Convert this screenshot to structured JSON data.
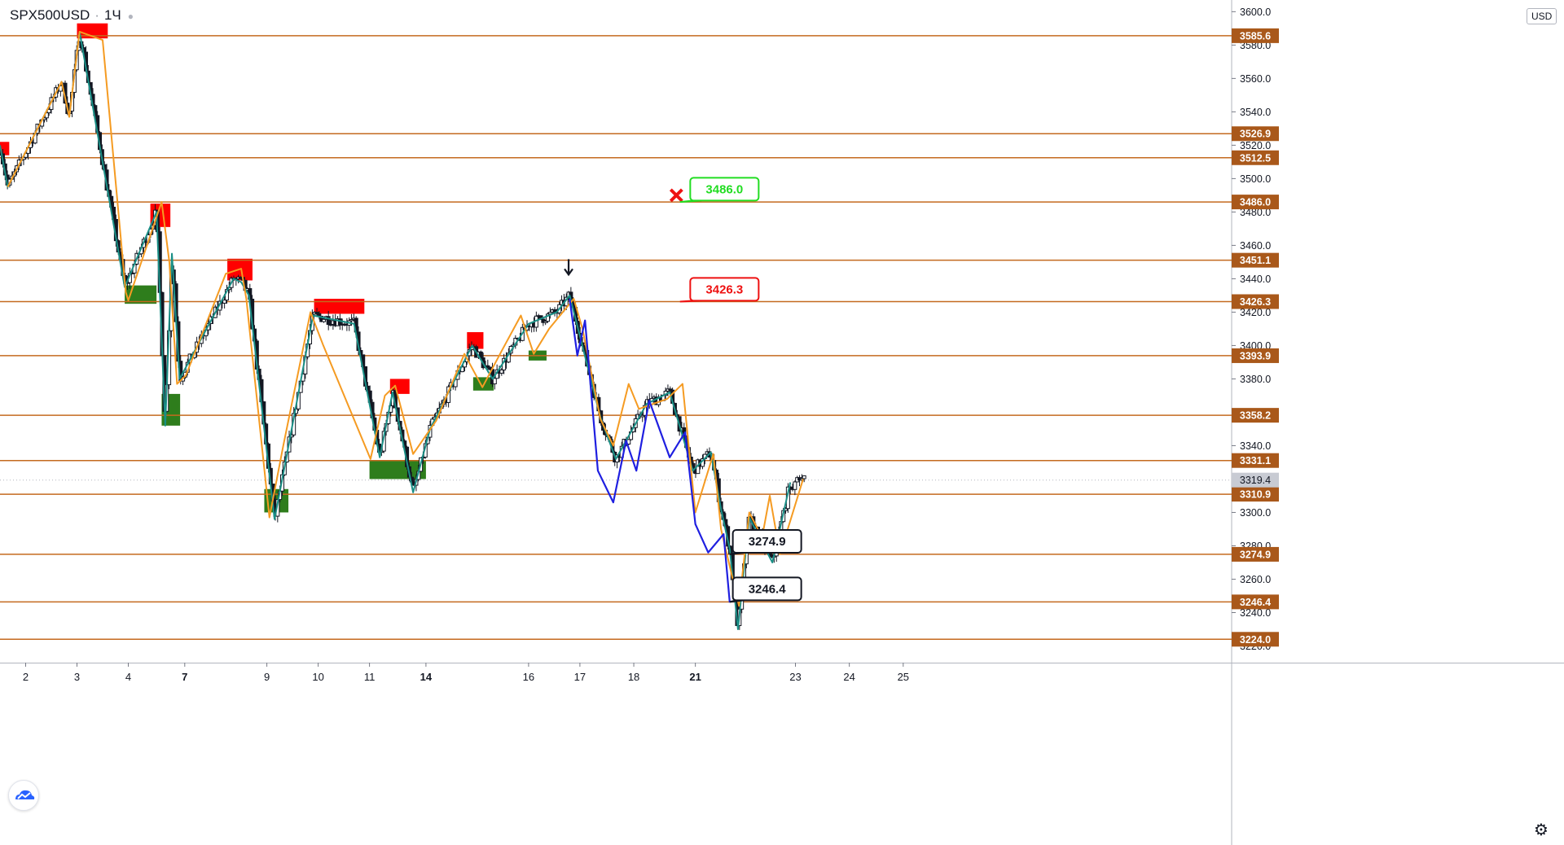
{
  "header": {
    "symbol": "SPX500USD",
    "interval": "1Ч"
  },
  "currency": "USD",
  "colors": {
    "level_line": "#c46a1f",
    "level_label_bg": "#a9581a",
    "supply_zone": "#ff0000",
    "demand_zone": "#2e7d1c",
    "zigzag_orange": "#f59b22",
    "zigzag_teal": "#1a8f86",
    "projection_blue": "#1f1fe0",
    "candle_up": "#ffffff",
    "candle_down": "#131722",
    "target_green": "#22dd22",
    "target_red": "#ee1111"
  },
  "chart_data": {
    "type": "candlestick",
    "y_range": [
      3210,
      3607
    ],
    "y_ticks": [
      3220,
      3240,
      3260,
      3280,
      3300,
      3320,
      3340,
      3360,
      3380,
      3400,
      3420,
      3440,
      3460,
      3480,
      3500,
      3520,
      3540,
      3560,
      3580,
      3600
    ],
    "x_range": [
      1.5,
      25.5
    ],
    "x_ticks": [
      {
        "x": 2,
        "label": "2",
        "bold": false
      },
      {
        "x": 3,
        "label": "3",
        "bold": false
      },
      {
        "x": 4,
        "label": "4",
        "bold": false
      },
      {
        "x": 5.1,
        "label": "7",
        "bold": true
      },
      {
        "x": 6.7,
        "label": "9",
        "bold": false
      },
      {
        "x": 7.7,
        "label": "10",
        "bold": false
      },
      {
        "x": 8.7,
        "label": "11",
        "bold": false
      },
      {
        "x": 9.8,
        "label": "14",
        "bold": true
      },
      {
        "x": 11.8,
        "label": "16",
        "bold": false
      },
      {
        "x": 12.8,
        "label": "17",
        "bold": false
      },
      {
        "x": 13.85,
        "label": "18",
        "bold": false
      },
      {
        "x": 15.05,
        "label": "21",
        "bold": true
      },
      {
        "x": 17.0,
        "label": "23",
        "bold": false
      },
      {
        "x": 18.05,
        "label": "24",
        "bold": false
      },
      {
        "x": 19.1,
        "label": "25",
        "bold": false
      }
    ],
    "levels": [
      {
        "value": 3585.6,
        "label": "3585.6"
      },
      {
        "value": 3526.9,
        "label": "3526.9"
      },
      {
        "value": 3512.5,
        "label": "3512.5"
      },
      {
        "value": 3486.0,
        "label": "3486.0"
      },
      {
        "value": 3451.1,
        "label": "3451.1"
      },
      {
        "value": 3426.3,
        "label": "3426.3"
      },
      {
        "value": 3393.9,
        "label": "3393.9"
      },
      {
        "value": 3358.2,
        "label": "3358.2"
      },
      {
        "value": 3331.1,
        "label": "3331.1"
      },
      {
        "value": 3310.9,
        "label": "3310.9"
      },
      {
        "value": 3274.9,
        "label": "3274.9"
      },
      {
        "value": 3246.4,
        "label": "3246.4"
      },
      {
        "value": 3224.0,
        "label": "3224.0"
      }
    ],
    "last_price": {
      "value": 3319.4,
      "label": "3319.4"
    },
    "supply_zones": [
      {
        "x1": 1.5,
        "x2": 1.68,
        "y1": 3514,
        "y2": 3522
      },
      {
        "x1": 3.0,
        "x2": 3.6,
        "y1": 3584,
        "y2": 3593
      },
      {
        "x1": 4.43,
        "x2": 4.82,
        "y1": 3471,
        "y2": 3485
      },
      {
        "x1": 5.93,
        "x2": 6.42,
        "y1": 3439,
        "y2": 3452
      },
      {
        "x1": 7.62,
        "x2": 8.6,
        "y1": 3419,
        "y2": 3428
      },
      {
        "x1": 9.1,
        "x2": 9.48,
        "y1": 3371,
        "y2": 3380
      },
      {
        "x1": 10.6,
        "x2": 10.92,
        "y1": 3398,
        "y2": 3408
      }
    ],
    "demand_zones": [
      {
        "x1": 3.93,
        "x2": 4.55,
        "y1": 3425,
        "y2": 3436
      },
      {
        "x1": 4.65,
        "x2": 5.01,
        "y1": 3352,
        "y2": 3371
      },
      {
        "x1": 6.65,
        "x2": 7.12,
        "y1": 3300,
        "y2": 3314
      },
      {
        "x1": 8.7,
        "x2": 9.8,
        "y1": 3320,
        "y2": 3331
      },
      {
        "x1": 10.72,
        "x2": 11.12,
        "y1": 3373,
        "y2": 3381
      },
      {
        "x1": 11.8,
        "x2": 12.15,
        "y1": 3391,
        "y2": 3397
      }
    ],
    "zigzag_orange": [
      [
        1.65,
        3495
      ],
      [
        2.7,
        3558
      ],
      [
        2.85,
        3537
      ],
      [
        3.05,
        3588
      ],
      [
        3.5,
        3583
      ],
      [
        3.95,
        3432
      ],
      [
        4.0,
        3427
      ],
      [
        4.65,
        3486
      ],
      [
        4.8,
        3450
      ],
      [
        4.95,
        3377
      ],
      [
        5.12,
        3382
      ],
      [
        5.9,
        3443
      ],
      [
        6.2,
        3446
      ],
      [
        6.3,
        3428
      ],
      [
        6.75,
        3297
      ],
      [
        7.02,
        3340
      ],
      [
        7.55,
        3420
      ],
      [
        7.8,
        3400
      ],
      [
        8.72,
        3332
      ],
      [
        9.0,
        3370
      ],
      [
        9.2,
        3376
      ],
      [
        9.55,
        3335
      ],
      [
        10.0,
        3355
      ],
      [
        10.55,
        3395
      ],
      [
        10.9,
        3375
      ],
      [
        11.28,
        3397
      ],
      [
        11.65,
        3418
      ],
      [
        11.9,
        3395
      ],
      [
        12.2,
        3410
      ],
      [
        12.68,
        3428
      ],
      [
        12.85,
        3410
      ],
      [
        13.2,
        3356
      ],
      [
        13.45,
        3340
      ],
      [
        13.75,
        3377
      ],
      [
        13.95,
        3362
      ],
      [
        14.5,
        3368
      ],
      [
        14.8,
        3377
      ],
      [
        15.05,
        3300
      ],
      [
        15.4,
        3335
      ],
      [
        15.55,
        3290
      ],
      [
        15.9,
        3244
      ],
      [
        16.1,
        3300
      ],
      [
        16.35,
        3285
      ],
      [
        16.5,
        3310
      ],
      [
        16.7,
        3275
      ],
      [
        17.15,
        3320
      ]
    ],
    "zigzag_teal": [
      [
        1.5,
        3520
      ],
      [
        1.65,
        3495
      ],
      [
        2.7,
        3558
      ],
      [
        2.85,
        3537
      ],
      [
        3.05,
        3588
      ],
      [
        3.93,
        3435
      ],
      [
        4.55,
        3480
      ],
      [
        4.72,
        3352
      ],
      [
        4.85,
        3455
      ],
      [
        5.0,
        3380
      ],
      [
        6.05,
        3440
      ],
      [
        6.2,
        3438
      ],
      [
        6.35,
        3430
      ],
      [
        6.85,
        3296
      ],
      [
        7.0,
        3320
      ],
      [
        7.6,
        3418
      ],
      [
        8.4,
        3413
      ],
      [
        8.9,
        3333
      ],
      [
        9.15,
        3372
      ],
      [
        9.55,
        3312
      ],
      [
        9.88,
        3350
      ],
      [
        10.7,
        3400
      ],
      [
        11.1,
        3380
      ],
      [
        11.8,
        3413
      ],
      [
        12.35,
        3420
      ],
      [
        12.6,
        3430
      ],
      [
        13.2,
        3357
      ],
      [
        13.5,
        3332
      ],
      [
        14.1,
        3365
      ],
      [
        14.55,
        3372
      ],
      [
        15.0,
        3325
      ],
      [
        15.35,
        3336
      ],
      [
        15.55,
        3302
      ],
      [
        15.72,
        3278
      ],
      [
        15.88,
        3230
      ],
      [
        16.1,
        3297
      ],
      [
        16.55,
        3270
      ],
      [
        16.9,
        3318
      ]
    ],
    "projection_blue": [
      [
        12.6,
        3428
      ],
      [
        12.75,
        3394
      ],
      [
        12.9,
        3415
      ],
      [
        13.15,
        3325
      ],
      [
        13.45,
        3306
      ],
      [
        13.7,
        3343
      ],
      [
        13.9,
        3325
      ],
      [
        14.15,
        3367
      ],
      [
        14.55,
        3333
      ],
      [
        14.85,
        3348
      ],
      [
        15.05,
        3293
      ],
      [
        15.3,
        3276
      ],
      [
        15.6,
        3287
      ],
      [
        15.72,
        3246
      ]
    ],
    "arrow_down_marker": {
      "x": 12.58,
      "y": 3441
    },
    "cross_marker": {
      "x": 14.68,
      "y": 3490
    },
    "target_labels": [
      {
        "text": "3486.0",
        "x": 14.95,
        "y": 3500.5,
        "tip_x": 14.75,
        "tip_y": 3486,
        "style": "green"
      },
      {
        "text": "3426.3",
        "x": 14.95,
        "y": 3440.5,
        "tip_x": 14.75,
        "tip_y": 3426.3,
        "style": "red"
      },
      {
        "text": "3274.9",
        "x": 15.78,
        "y": 3289.5,
        "tip_x": 15.72,
        "tip_y": 3274.9,
        "style": "black"
      },
      {
        "text": "3246.4",
        "x": 15.78,
        "y": 3261,
        "tip_x": 15.72,
        "tip_y": 3246.4,
        "style": "black"
      }
    ]
  }
}
